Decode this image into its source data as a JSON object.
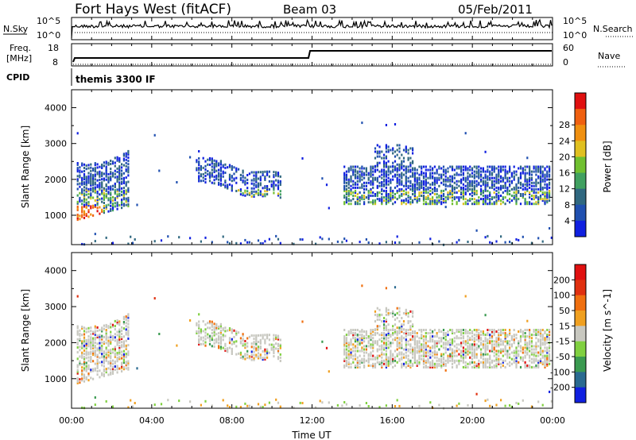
{
  "header": {
    "site": "Fort Hays West (fitACF)",
    "beam": "Beam 03",
    "date": "05/Feb/2011"
  },
  "top_panels": {
    "nsky_label": "N.Sky",
    "nsearch_label": "N.Search",
    "nsky_ticks": [
      "10^5",
      "10^0"
    ],
    "nsearch_ticks": [
      "10^5",
      "10^0"
    ],
    "freq_label_1": "Freq.",
    "freq_label_2": "[MHz]",
    "freq_ticks": [
      "18",
      "8"
    ],
    "nave_label": "Nave",
    "nave_ticks": [
      "60",
      "0"
    ],
    "cpid_label": "CPID",
    "cpid_value": "themis 3300 IF"
  },
  "chart_data": [
    {
      "type": "heatmap",
      "panel": "power",
      "ylabel": "Slant Range [km]",
      "yticks": [
        1000,
        2000,
        3000,
        4000
      ],
      "ylim": [
        180,
        4500
      ],
      "colorbar": {
        "label": "Power [dB]",
        "ticks": [
          4,
          8,
          12,
          16,
          20,
          24,
          28
        ],
        "colors": [
          "#1020e0",
          "#2050b0",
          "#306880",
          "#40a060",
          "#70c030",
          "#e0c020",
          "#f09010",
          "#f06010",
          "#e01010"
        ]
      },
      "scatter_regions": [
        {
          "t": [
            0.2,
            2.8
          ],
          "r": [
            800,
            2900
          ]
        },
        {
          "t": [
            6.2,
            10.4
          ],
          "r": [
            1500,
            2700
          ]
        },
        {
          "t": [
            13.5,
            23.9
          ],
          "r": [
            1300,
            3000
          ]
        }
      ]
    },
    {
      "type": "heatmap",
      "panel": "velocity",
      "ylabel": "Slant Range [km]",
      "yticks": [
        1000,
        2000,
        3000,
        4000
      ],
      "ylim": [
        180,
        4500
      ],
      "colorbar": {
        "label": "Velocity [m s^-1]",
        "ticks": [
          200,
          100,
          50,
          15,
          -15,
          -50,
          -100,
          -200
        ],
        "colors": [
          "#1020e0",
          "#2a6a90",
          "#3a9a50",
          "#80d040",
          "#c8c8c0",
          "#f0a020",
          "#f07010",
          "#e03010",
          "#e01010"
        ]
      },
      "xticks": [
        "00:00",
        "04:00",
        "08:00",
        "12:00",
        "16:00",
        "20:00",
        "00:00"
      ]
    }
  ],
  "xaxis": {
    "label": "Time UT",
    "ticks": [
      "00:00",
      "04:00",
      "08:00",
      "12:00",
      "16:00",
      "20:00",
      "00:00"
    ]
  }
}
